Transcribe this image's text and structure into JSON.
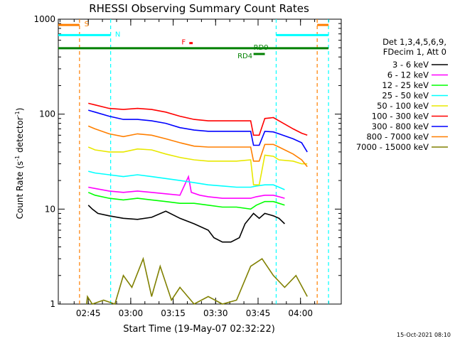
{
  "chart_data": {
    "type": "line",
    "title": "RHESSI Observing Summary Count Rates",
    "xlabel": "Start Time (19-May-07 02:32:22)",
    "ylabel": "Count Rate (s⁻¹ detector⁻¹)",
    "ylabel_parts": [
      "Count Rate (s",
      "-1",
      " detector",
      "-1",
      ")"
    ],
    "yscale": "log",
    "ylim": [
      1,
      1000
    ],
    "xlim_minutes": [
      2.0,
      102.0
    ],
    "x_ticks": [
      {
        "t": 12.6,
        "label": "02:45"
      },
      {
        "t": 27.6,
        "label": "03:00"
      },
      {
        "t": 42.6,
        "label": "03:15"
      },
      {
        "t": 57.6,
        "label": "03:30"
      },
      {
        "t": 72.6,
        "label": "03:45"
      },
      {
        "t": 87.6,
        "label": "04:00"
      }
    ],
    "y_ticks": [
      {
        "v": 1,
        "label": "1"
      },
      {
        "v": 10,
        "label": "10"
      },
      {
        "v": 100,
        "label": "100"
      },
      {
        "v": 1000,
        "label": "1000"
      }
    ],
    "legend": {
      "header": [
        "Det 1,3,4,5,6,9,",
        "FDecim 1, Att 0"
      ],
      "placement": "right"
    },
    "timestamp": "15-Oct-2021 08:10",
    "flags": [
      {
        "label": "S",
        "color": "#ff7f00",
        "segments": [
          [
            2.0,
            9.5
          ],
          [
            93.5,
            97.5
          ]
        ],
        "y": 870
      },
      {
        "label": "N",
        "color": "#00ffff",
        "segments": [
          [
            2.0,
            20.5
          ],
          [
            79.0,
            97.5
          ]
        ],
        "y": 680
      },
      {
        "label": "F",
        "color": "#ff0000",
        "segments": [
          [
            48.3,
            49.5
          ]
        ],
        "y": 560
      },
      {
        "label": "RD9",
        "color": "#008000",
        "segments": [
          [
            2.0,
            97.5
          ]
        ],
        "y": 495
      },
      {
        "label": "RD4",
        "color": "#008000",
        "segments": [
          [
            71.0,
            75.0
          ]
        ],
        "y": 430
      }
    ],
    "vlines": [
      {
        "t": 9.5,
        "color": "#ff7f00"
      },
      {
        "t": 20.5,
        "color": "#00ffff"
      },
      {
        "t": 79.0,
        "color": "#00ffff"
      },
      {
        "t": 93.5,
        "color": "#ff7f00"
      },
      {
        "t": 97.5,
        "color": "#00ffff"
      }
    ],
    "series": [
      {
        "name": "3 - 6 keV",
        "color": "#000000",
        "points": [
          [
            12.6,
            11
          ],
          [
            14,
            10
          ],
          [
            16,
            9
          ],
          [
            20,
            8.5
          ],
          [
            25,
            8
          ],
          [
            30,
            7.8
          ],
          [
            35,
            8.2
          ],
          [
            40,
            9.5
          ],
          [
            45,
            8
          ],
          [
            50,
            7
          ],
          [
            55,
            6
          ],
          [
            57,
            5
          ],
          [
            60,
            4.5
          ],
          [
            63,
            4.5
          ],
          [
            66,
            5
          ],
          [
            68,
            7
          ],
          [
            71,
            9
          ],
          [
            73,
            8
          ],
          [
            75,
            9
          ],
          [
            78,
            8.5
          ],
          [
            80,
            8
          ],
          [
            82,
            7
          ]
        ]
      },
      {
        "name": "6 - 12 keV",
        "color": "#ff00ff",
        "points": [
          [
            12.6,
            17
          ],
          [
            15,
            16.5
          ],
          [
            20,
            15.5
          ],
          [
            25,
            15
          ],
          [
            30,
            15.5
          ],
          [
            35,
            15
          ],
          [
            40,
            14.5
          ],
          [
            45,
            14
          ],
          [
            48,
            22
          ],
          [
            49,
            15
          ],
          [
            52,
            14
          ],
          [
            55,
            13.5
          ],
          [
            60,
            13
          ],
          [
            65,
            13
          ],
          [
            70,
            13
          ],
          [
            72,
            13.5
          ],
          [
            75,
            14
          ],
          [
            78,
            14
          ],
          [
            80,
            13.5
          ],
          [
            82,
            13
          ]
        ]
      },
      {
        "name": "12 - 25 keV",
        "color": "#00ff00",
        "points": [
          [
            12.6,
            15
          ],
          [
            15,
            14
          ],
          [
            20,
            13
          ],
          [
            25,
            12.5
          ],
          [
            30,
            13
          ],
          [
            35,
            12.5
          ],
          [
            40,
            12
          ],
          [
            45,
            11.5
          ],
          [
            50,
            11.5
          ],
          [
            55,
            11
          ],
          [
            60,
            10.5
          ],
          [
            65,
            10.5
          ],
          [
            70,
            10
          ],
          [
            72,
            11
          ],
          [
            75,
            12
          ],
          [
            78,
            12
          ],
          [
            80,
            11.5
          ],
          [
            82,
            11
          ]
        ]
      },
      {
        "name": "25 - 50 keV",
        "color": "#00ffff",
        "points": [
          [
            12.6,
            25
          ],
          [
            15,
            24
          ],
          [
            20,
            23
          ],
          [
            25,
            22
          ],
          [
            30,
            23
          ],
          [
            35,
            22
          ],
          [
            40,
            21
          ],
          [
            45,
            20
          ],
          [
            50,
            19
          ],
          [
            55,
            18
          ],
          [
            60,
            17.5
          ],
          [
            65,
            17
          ],
          [
            70,
            17
          ],
          [
            72,
            17.5
          ],
          [
            75,
            18
          ],
          [
            78,
            18
          ],
          [
            80,
            17
          ],
          [
            82,
            16
          ]
        ]
      },
      {
        "name": "50 - 100 keV",
        "color": "#e8e800",
        "points": [
          [
            12.6,
            45
          ],
          [
            15,
            42
          ],
          [
            20,
            40
          ],
          [
            25,
            40
          ],
          [
            30,
            43
          ],
          [
            35,
            42
          ],
          [
            40,
            38
          ],
          [
            45,
            35
          ],
          [
            50,
            33
          ],
          [
            55,
            32
          ],
          [
            60,
            32
          ],
          [
            65,
            32
          ],
          [
            70,
            33
          ],
          [
            71,
            18
          ],
          [
            73,
            18
          ],
          [
            75,
            37
          ],
          [
            78,
            36
          ],
          [
            80,
            33
          ],
          [
            85,
            32
          ],
          [
            88,
            30
          ],
          [
            90,
            30
          ]
        ]
      },
      {
        "name": "100 - 300 keV",
        "color": "#ff0000",
        "points": [
          [
            12.6,
            130
          ],
          [
            15,
            125
          ],
          [
            20,
            115
          ],
          [
            25,
            112
          ],
          [
            30,
            115
          ],
          [
            35,
            112
          ],
          [
            40,
            105
          ],
          [
            45,
            95
          ],
          [
            50,
            88
          ],
          [
            55,
            85
          ],
          [
            60,
            85
          ],
          [
            65,
            85
          ],
          [
            70,
            85
          ],
          [
            71,
            60
          ],
          [
            73,
            60
          ],
          [
            75,
            90
          ],
          [
            78,
            92
          ],
          [
            80,
            85
          ],
          [
            85,
            70
          ],
          [
            88,
            63
          ],
          [
            90,
            60
          ]
        ]
      },
      {
        "name": "300 - 800 keV",
        "color": "#0000ff",
        "points": [
          [
            12.6,
            110
          ],
          [
            15,
            105
          ],
          [
            20,
            95
          ],
          [
            25,
            88
          ],
          [
            30,
            88
          ],
          [
            35,
            85
          ],
          [
            40,
            80
          ],
          [
            45,
            72
          ],
          [
            50,
            68
          ],
          [
            55,
            66
          ],
          [
            60,
            66
          ],
          [
            65,
            66
          ],
          [
            70,
            66
          ],
          [
            71,
            47
          ],
          [
            73,
            47
          ],
          [
            75,
            66
          ],
          [
            78,
            65
          ],
          [
            80,
            62
          ],
          [
            85,
            55
          ],
          [
            88,
            50
          ],
          [
            90,
            40
          ]
        ]
      },
      {
        "name": "800 - 7000 keV",
        "color": "#ff7f00",
        "points": [
          [
            12.6,
            75
          ],
          [
            15,
            70
          ],
          [
            20,
            62
          ],
          [
            25,
            58
          ],
          [
            30,
            62
          ],
          [
            35,
            60
          ],
          [
            40,
            55
          ],
          [
            45,
            50
          ],
          [
            50,
            46
          ],
          [
            55,
            45
          ],
          [
            60,
            45
          ],
          [
            65,
            45
          ],
          [
            70,
            45
          ],
          [
            71,
            32
          ],
          [
            73,
            32
          ],
          [
            75,
            48
          ],
          [
            78,
            48
          ],
          [
            80,
            45
          ],
          [
            85,
            38
          ],
          [
            88,
            33
          ],
          [
            90,
            28
          ]
        ]
      },
      {
        "name": "7000 - 15000 keV",
        "color": "#808000",
        "points": [
          [
            12.0,
            1
          ],
          [
            12.3,
            1.2
          ],
          [
            14,
            1
          ],
          [
            18,
            1.1
          ],
          [
            22,
            1
          ],
          [
            25,
            2
          ],
          [
            28,
            1.5
          ],
          [
            32,
            3
          ],
          [
            35,
            1.2
          ],
          [
            38,
            2.5
          ],
          [
            42,
            1.1
          ],
          [
            45,
            1.5
          ],
          [
            50,
            1
          ],
          [
            55,
            1.2
          ],
          [
            60,
            1
          ],
          [
            65,
            1.1
          ],
          [
            70,
            2.5
          ],
          [
            74,
            3
          ],
          [
            78,
            2
          ],
          [
            82,
            1.5
          ],
          [
            86,
            2
          ],
          [
            90,
            1.2
          ]
        ]
      }
    ]
  }
}
